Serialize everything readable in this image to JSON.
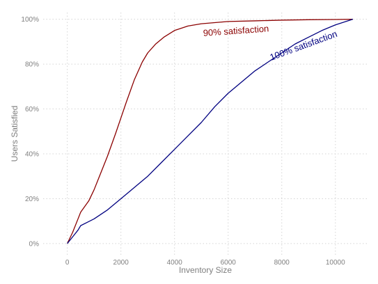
{
  "chart_data": {
    "type": "line",
    "title": "",
    "xlabel": "Inventory Size",
    "ylabel": "Users Satisfied",
    "xlim": [
      -900,
      11200
    ],
    "ylim": [
      -0.05,
      1.03
    ],
    "x_ticks": [
      0,
      2000,
      4000,
      6000,
      8000,
      10000
    ],
    "x_tick_labels": [
      "0",
      "2000",
      "4000",
      "6000",
      "8000",
      "10000"
    ],
    "y_ticks": [
      0,
      0.2,
      0.4,
      0.6,
      0.8,
      1.0
    ],
    "y_tick_labels": [
      "0%",
      "20%",
      "40%",
      "60%",
      "80%",
      "100%"
    ],
    "grid": true,
    "legend": "none",
    "series": [
      {
        "color": "#8b0000",
        "x": [
          0,
          200,
          400,
          500,
          800,
          1000,
          1200,
          1500,
          1800,
          2000,
          2200,
          2500,
          2800,
          3000,
          3300,
          3600,
          4000,
          4500,
          5000,
          5500,
          6000,
          7000,
          8000,
          9000,
          10000,
          10650
        ],
        "y": [
          0,
          0.05,
          0.11,
          0.14,
          0.19,
          0.24,
          0.3,
          0.39,
          0.49,
          0.56,
          0.63,
          0.73,
          0.81,
          0.85,
          0.89,
          0.92,
          0.95,
          0.97,
          0.98,
          0.985,
          0.99,
          0.993,
          0.996,
          0.998,
          0.999,
          1.0
        ]
      },
      {
        "color": "#000080",
        "x": [
          0,
          200,
          400,
          500,
          1000,
          1500,
          2000,
          2500,
          3000,
          3500,
          4000,
          4500,
          5000,
          5500,
          6000,
          6500,
          7000,
          7500,
          8000,
          8500,
          9000,
          9500,
          10000,
          10650
        ],
        "y": [
          0,
          0.03,
          0.06,
          0.08,
          0.11,
          0.15,
          0.2,
          0.25,
          0.3,
          0.36,
          0.42,
          0.48,
          0.54,
          0.61,
          0.67,
          0.72,
          0.77,
          0.81,
          0.85,
          0.89,
          0.92,
          0.95,
          0.975,
          1.0
        ]
      }
    ],
    "annotations": [
      {
        "text": "90% satisfaction",
        "x": 6300,
        "y": 0.935,
        "angle": -4,
        "color": "#8b0000"
      },
      {
        "text": "100% satisfaction",
        "x": 8850,
        "y": 0.87,
        "angle": -20,
        "color": "#000080"
      }
    ]
  }
}
